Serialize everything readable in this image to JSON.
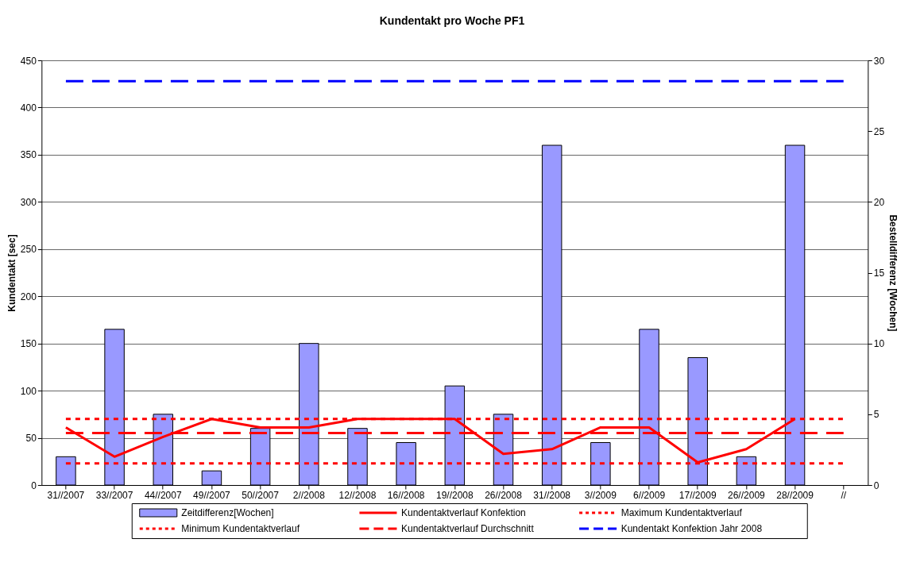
{
  "chart_data": {
    "type": "bar",
    "title": "Kundentakt pro Woche PF1",
    "ylabel": "Kundentakt [sec]",
    "y2label": "Bestelldifferenz [Wochen]",
    "categories": [
      "31//2007",
      "33//2007",
      "44//2007",
      "49//2007",
      "50//2007",
      "2//2008",
      "12//2008",
      "16//2008",
      "19//2008",
      "26//2008",
      "31//2008",
      "3//2009",
      "6//2009",
      "17//2009",
      "26//2009",
      "28//2009",
      "//"
    ],
    "series": [
      {
        "name": "Zeitdifferenz[Wochen]",
        "type": "bar",
        "axis": "y2",
        "color": "#9999ff",
        "values": [
          2,
          11,
          5,
          1,
          4,
          10,
          4,
          3,
          7,
          5,
          24,
          3,
          11,
          9,
          2,
          24,
          null
        ]
      },
      {
        "name": "Kundentaktverlauf Konfektion",
        "type": "line",
        "color": "#ff0000",
        "line_style": "solid",
        "values": [
          61,
          30,
          51,
          70,
          61,
          61,
          70,
          70,
          70,
          33,
          38,
          61,
          61,
          24,
          38,
          70,
          null
        ]
      },
      {
        "name": "Maximum Kundentaktverlauf",
        "type": "line",
        "color": "#ff0000",
        "line_style": "dotted",
        "values": [
          70,
          70,
          70,
          70,
          70,
          70,
          70,
          70,
          70,
          70,
          70,
          70,
          70,
          70,
          70,
          70,
          70
        ]
      },
      {
        "name": "Minimum Kundentaktverlauf",
        "type": "line",
        "color": "#ff0000",
        "line_style": "dotted",
        "values": [
          23,
          23,
          23,
          23,
          23,
          23,
          23,
          23,
          23,
          23,
          23,
          23,
          23,
          23,
          23,
          23,
          23
        ]
      },
      {
        "name": "Kundentaktverlauf Durchschnitt",
        "type": "line",
        "color": "#ff0000",
        "line_style": "dashed",
        "values": [
          55,
          55,
          55,
          55,
          55,
          55,
          55,
          55,
          55,
          55,
          55,
          55,
          55,
          55,
          55,
          55,
          55
        ]
      },
      {
        "name": "Kundentakt Konfektion Jahr 2008",
        "type": "line",
        "color": "#0000ff",
        "line_style": "dashed",
        "values": [
          428,
          428,
          428,
          428,
          428,
          428,
          428,
          428,
          428,
          428,
          428,
          428,
          428,
          428,
          428,
          428,
          428
        ]
      }
    ],
    "ylim": [
      0,
      450
    ],
    "yticks": [
      0,
      50,
      100,
      150,
      200,
      250,
      300,
      350,
      400,
      450
    ],
    "y2lim": [
      0,
      30
    ],
    "y2ticks": [
      0,
      5,
      10,
      15,
      20,
      25,
      30
    ],
    "grid": "y",
    "legend": "bottom"
  }
}
